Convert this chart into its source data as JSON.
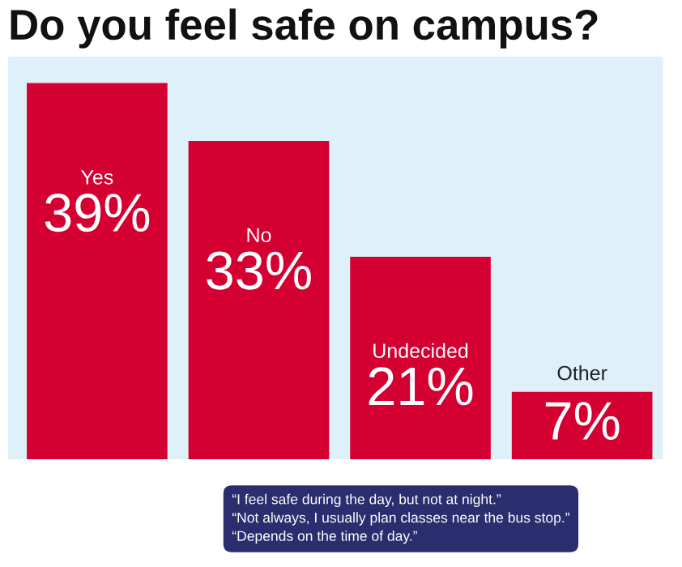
{
  "chart_data": {
    "type": "bar",
    "title": "Do you feel safe on campus?",
    "categories": [
      "Yes",
      "No",
      "Undecided",
      "Other"
    ],
    "values": [
      39,
      33,
      21,
      7
    ],
    "color": "#d50032",
    "data_labels": true,
    "value_labels": [
      "39%",
      "33%",
      "21%",
      "7%"
    ],
    "tick_labels": false,
    "annotations": [
      "“I feel safe during the day, but not at night.”\n“Not always, I usually plan classes near the bus stop.”\n“Depends on the time of day.”"
    ]
  }
}
